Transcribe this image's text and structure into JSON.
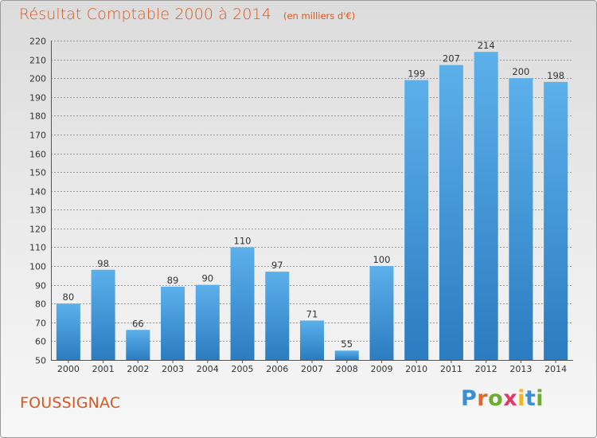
{
  "header": {
    "title": "Résultat Comptable 2000 à 2014",
    "unit_note": "(en milliers d'€)"
  },
  "footer": {
    "commune": "FOUSSIGNAC"
  },
  "logo": {
    "letters": [
      {
        "ch": "P",
        "color": "#3a8fd0"
      },
      {
        "ch": "r",
        "color": "#e0672a"
      },
      {
        "ch": "o",
        "color": "#6cad2e"
      },
      {
        "ch": "x",
        "color": "#e03a6b"
      },
      {
        "ch": "i",
        "color": "#f2b324"
      },
      {
        "ch": "t",
        "color": "#3a8fd0"
      },
      {
        "ch": "i",
        "color": "#6cad2e"
      }
    ]
  },
  "colors": {
    "accent": "#d9581f",
    "bar_top": "#5cb0ea",
    "bar_bottom": "#2b7cc0",
    "grid": "#9a9a9a"
  },
  "chart_data": {
    "type": "bar",
    "categories": [
      "2000",
      "2001",
      "2002",
      "2003",
      "2004",
      "2005",
      "2006",
      "2007",
      "2008",
      "2009",
      "2010",
      "2011",
      "2012",
      "2013",
      "2014"
    ],
    "values": [
      80,
      98,
      66,
      89,
      90,
      110,
      97,
      71,
      55,
      100,
      199,
      207,
      214,
      200,
      198
    ],
    "title": "Résultat Comptable 2000 à 2014",
    "xlabel": "",
    "ylabel": "",
    "ylim": [
      50,
      220
    ],
    "yticks": [
      50,
      60,
      70,
      80,
      90,
      100,
      110,
      120,
      130,
      140,
      150,
      160,
      170,
      180,
      190,
      200,
      210,
      220
    ],
    "grid": true,
    "data_labels": true
  }
}
